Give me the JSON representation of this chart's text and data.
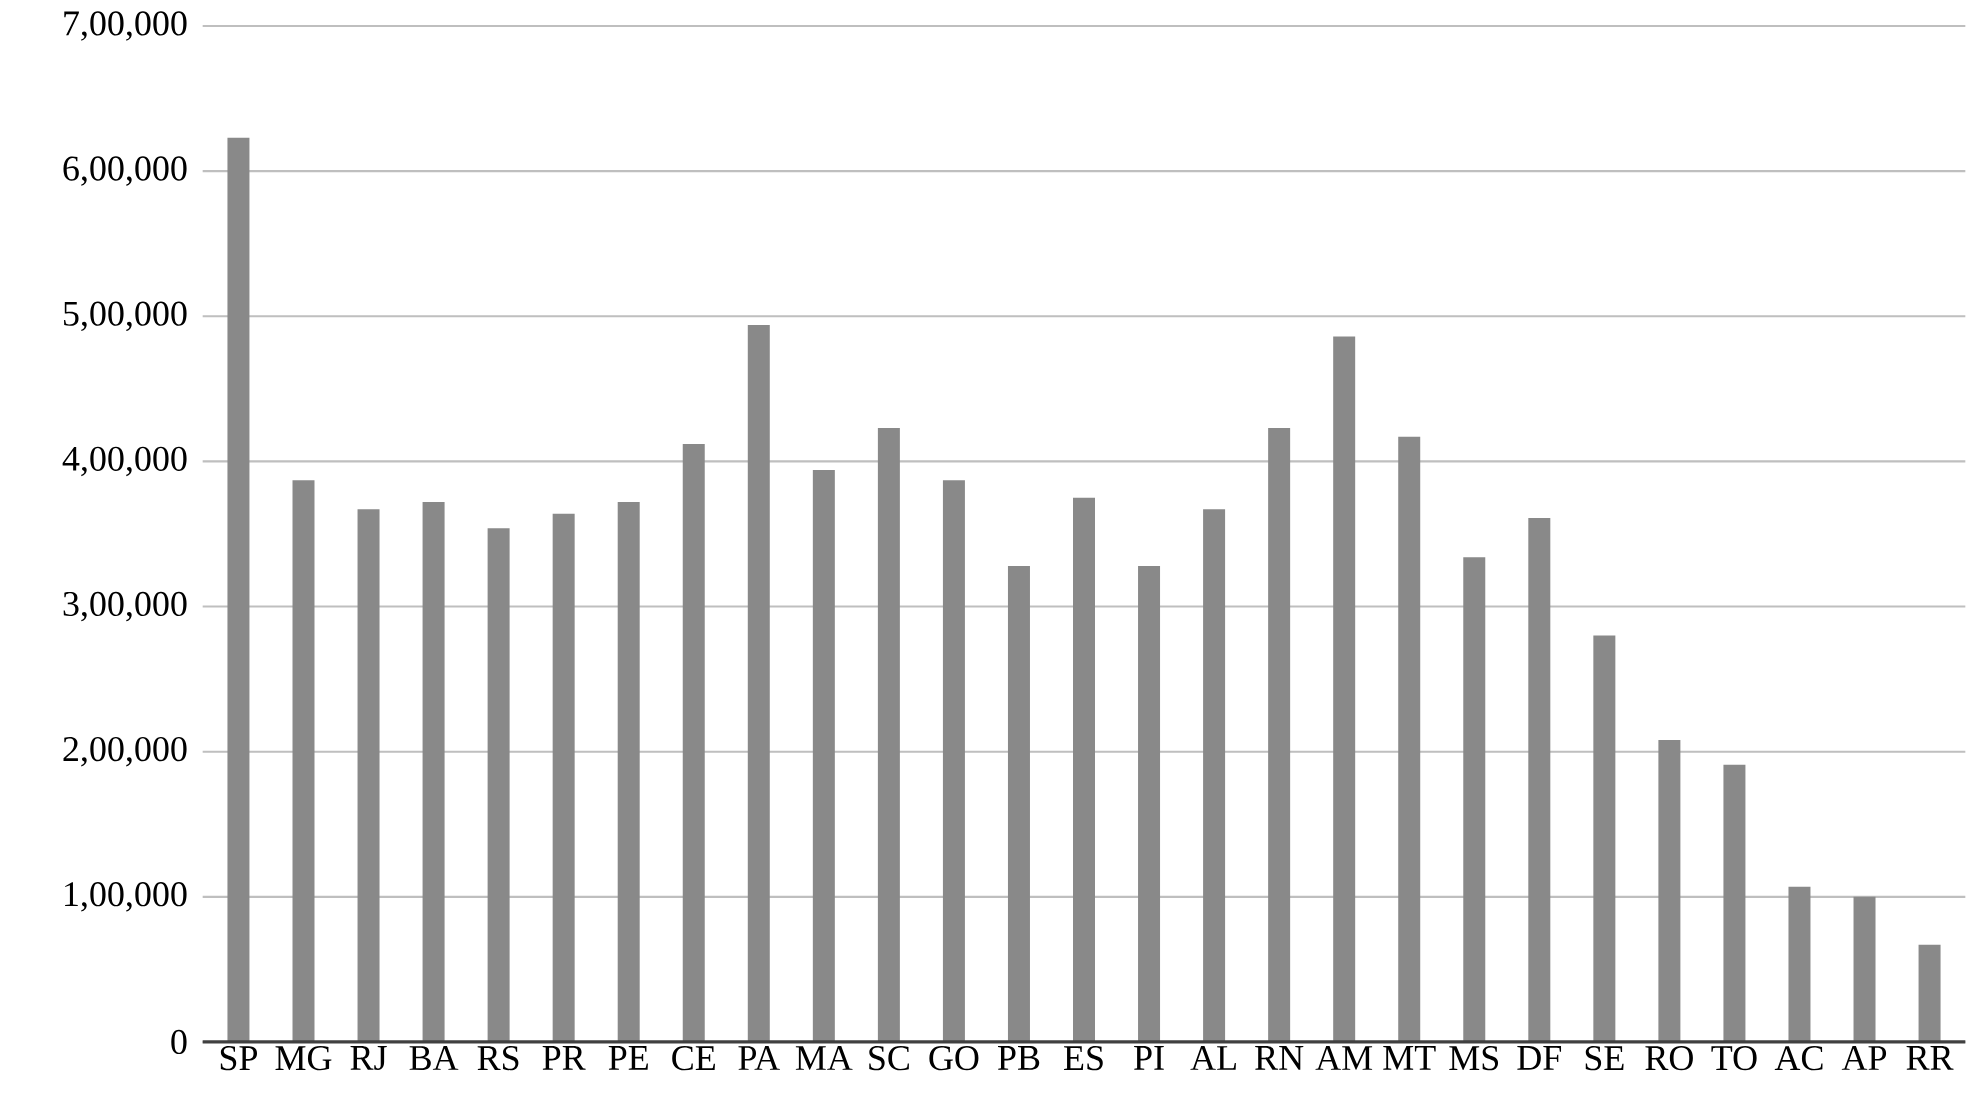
{
  "chart_data": {
    "type": "bar",
    "categories": [
      "SP",
      "MG",
      "RJ",
      "BA",
      "RS",
      "PR",
      "PE",
      "CE",
      "PA",
      "MA",
      "SC",
      "GO",
      "PB",
      "ES",
      "PI",
      "AL",
      "RN",
      "AM",
      "MT",
      "MS",
      "DF",
      "SE",
      "RO",
      "TO",
      "AC",
      "AP",
      "RR"
    ],
    "values": [
      623000,
      387000,
      367000,
      372000,
      354000,
      364000,
      372000,
      412000,
      494000,
      394000,
      423000,
      387000,
      328000,
      375000,
      328000,
      367000,
      423000,
      486000,
      417000,
      334000,
      361000,
      280000,
      208000,
      191000,
      107000,
      100000,
      67000
    ],
    "color": "#898989",
    "ylim": [
      0,
      700000
    ],
    "yticks": [
      {
        "value": 0,
        "label": "0"
      },
      {
        "value": 100000,
        "label": "1,00,000"
      },
      {
        "value": 200000,
        "label": "2,00,000"
      },
      {
        "value": 300000,
        "label": "3,00,000"
      },
      {
        "value": 400000,
        "label": "4,00,000"
      },
      {
        "value": 500000,
        "label": "5,00,000"
      },
      {
        "value": 600000,
        "label": "6,00,000"
      },
      {
        "value": 700000,
        "label": "7,00,000"
      }
    ],
    "grid": "y"
  }
}
